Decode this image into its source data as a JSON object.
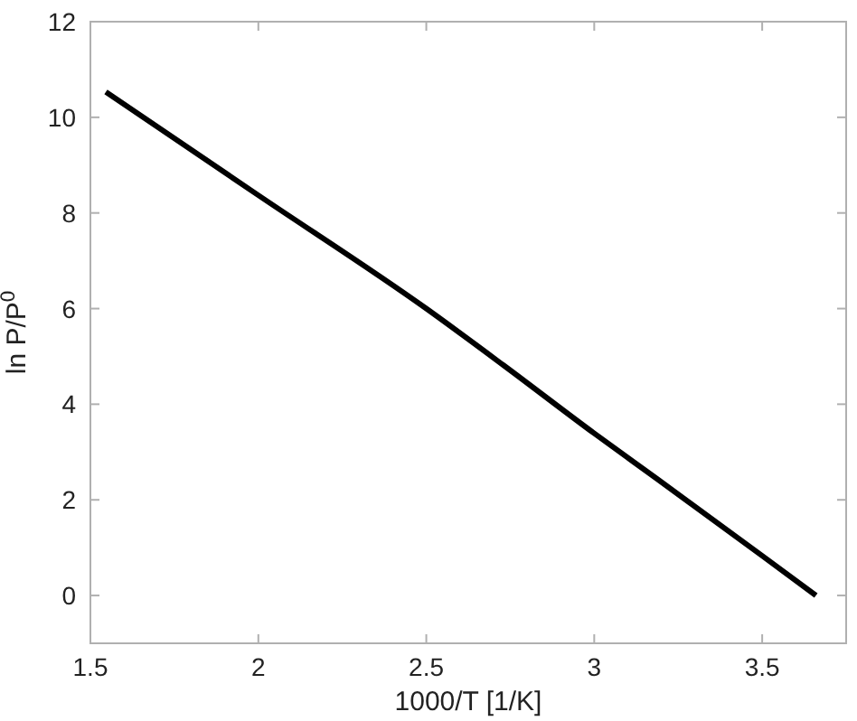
{
  "chart_data": {
    "type": "line",
    "xlabel": "1000/T [1/K]",
    "ylabel": "ln P/P$^{0}$",
    "xlim": [
      1.5,
      3.75
    ],
    "xticks": [
      1.5,
      2,
      2.5,
      3,
      3.5
    ],
    "ylim": [
      -1,
      12
    ],
    "yticks": [
      0,
      2,
      4,
      6,
      8,
      10,
      12
    ],
    "grid": false,
    "marker": "none",
    "line_style": "solid",
    "series": [
      {
        "color": "#000000",
        "x": [
          1.546,
          2,
          2.5,
          2.729,
          3,
          3.187,
          3.5,
          3.66
        ],
        "values": [
          10.53,
          8.37,
          6.0,
          4.82,
          3.39,
          2.44,
          0.83,
          0
        ]
      }
    ]
  }
}
